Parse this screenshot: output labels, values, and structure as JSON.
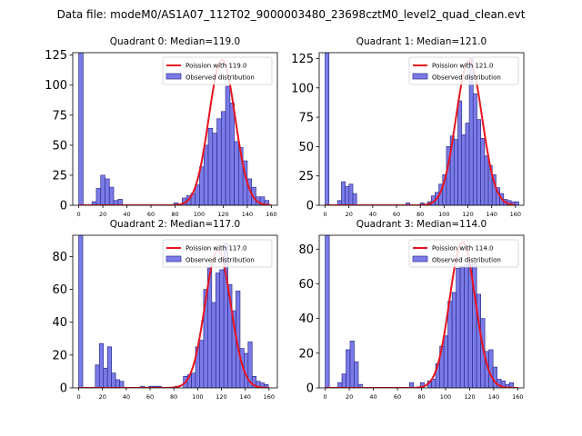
{
  "figure": {
    "suptitle": "Data file: modeM0/AS1A07_112T02_9000003480_23698cztM0_level2_quad_clean.evt"
  },
  "colors": {
    "bar_fill": "#7b7be8",
    "bar_edge": "#2f2f8f",
    "curve": "#e8141e"
  },
  "chart_data": [
    {
      "type": "bar",
      "title": "Quadrant 0: Median=119.0",
      "legend": [
        "Poission with 119.0",
        "Observed distribution"
      ],
      "legend_position": "top-right",
      "xlim": [
        -5,
        165
      ],
      "ylim": [
        0,
        127
      ],
      "xticks": [
        0,
        20,
        40,
        60,
        80,
        100,
        120,
        140,
        160
      ],
      "yticks": [
        0,
        25,
        50,
        75,
        100,
        125
      ],
      "bin_width": 3.6,
      "bins": [
        [
          0,
          127
        ],
        [
          11,
          3
        ],
        [
          14.6,
          14
        ],
        [
          18.2,
          25
        ],
        [
          21.8,
          22
        ],
        [
          25.4,
          15
        ],
        [
          29,
          4
        ],
        [
          32.6,
          5
        ],
        [
          79,
          2
        ],
        [
          86,
          6
        ],
        [
          89.6,
          8
        ],
        [
          93.2,
          10
        ],
        [
          96.8,
          17
        ],
        [
          100.4,
          32
        ],
        [
          104,
          50
        ],
        [
          107.6,
          64
        ],
        [
          111.2,
          60
        ],
        [
          114.8,
          72
        ],
        [
          118.4,
          78
        ],
        [
          122,
          99
        ],
        [
          125.6,
          85
        ],
        [
          129.2,
          53
        ],
        [
          132.8,
          48
        ],
        [
          136.4,
          37
        ],
        [
          140,
          22
        ],
        [
          143.6,
          15
        ],
        [
          147.2,
          7
        ],
        [
          150.8,
          7
        ],
        [
          154.4,
          4
        ]
      ],
      "poisson_mean": 119.0,
      "poisson_peak": 121
    },
    {
      "type": "bar",
      "title": "Quadrant 1: Median=121.0",
      "legend": [
        "Poission with 121.0",
        "Observed distribution"
      ],
      "legend_position": "top-right",
      "xlim": [
        -5,
        167
      ],
      "ylim": [
        0,
        130
      ],
      "xticks": [
        0,
        20,
        40,
        60,
        80,
        100,
        120,
        140,
        160
      ],
      "yticks": [
        0,
        25,
        50,
        75,
        100,
        125
      ],
      "bin_width": 3.2,
      "bins": [
        [
          0,
          130
        ],
        [
          10.5,
          4
        ],
        [
          13.7,
          20
        ],
        [
          16.9,
          16
        ],
        [
          20.1,
          18
        ],
        [
          23.3,
          10
        ],
        [
          68,
          2
        ],
        [
          80,
          2
        ],
        [
          86,
          3
        ],
        [
          89.2,
          8
        ],
        [
          92.4,
          11
        ],
        [
          95.6,
          18
        ],
        [
          98.8,
          26
        ],
        [
          102,
          50
        ],
        [
          105.2,
          59
        ],
        [
          108.4,
          56
        ],
        [
          111.6,
          89
        ],
        [
          114.8,
          60
        ],
        [
          118,
          70
        ],
        [
          121.2,
          125
        ],
        [
          124.4,
          95
        ],
        [
          127.6,
          73
        ],
        [
          130.8,
          57
        ],
        [
          134,
          42
        ],
        [
          137.2,
          34
        ],
        [
          140.4,
          26
        ],
        [
          143.6,
          15
        ],
        [
          146.8,
          10
        ],
        [
          150,
          5
        ],
        [
          153.2,
          4
        ],
        [
          156.4,
          3
        ],
        [
          159.6,
          3
        ]
      ],
      "poisson_mean": 121.0,
      "poisson_peak": 123
    },
    {
      "type": "bar",
      "title": "Quadrant 2: Median=117.0",
      "legend": [
        "Poission with 117.0",
        "Observed distribution"
      ],
      "legend_position": "top-right",
      "xlim": [
        -5,
        167
      ],
      "ylim": [
        0,
        93
      ],
      "xticks": [
        0,
        20,
        40,
        60,
        80,
        100,
        120,
        140,
        160
      ],
      "yticks": [
        0,
        20,
        40,
        60,
        80
      ],
      "bin_width": 3.4,
      "bins": [
        [
          0,
          93
        ],
        [
          14,
          14
        ],
        [
          17.4,
          27
        ],
        [
          20.8,
          12
        ],
        [
          24.2,
          25
        ],
        [
          27.6,
          9
        ],
        [
          31,
          5
        ],
        [
          34.4,
          4
        ],
        [
          52,
          1
        ],
        [
          59,
          1
        ],
        [
          63,
          1
        ],
        [
          66,
          1
        ],
        [
          81,
          1
        ],
        [
          88,
          7
        ],
        [
          91.4,
          8
        ],
        [
          94.8,
          9
        ],
        [
          98.2,
          25
        ],
        [
          101.6,
          29
        ],
        [
          105,
          60
        ],
        [
          108.4,
          73
        ],
        [
          111.8,
          52
        ],
        [
          115.2,
          70
        ],
        [
          118.6,
          72
        ],
        [
          122,
          88
        ],
        [
          125.4,
          63
        ],
        [
          128.8,
          47
        ],
        [
          132.2,
          59
        ],
        [
          135.6,
          24
        ],
        [
          139,
          21
        ],
        [
          142.4,
          28
        ],
        [
          145.8,
          7
        ],
        [
          149.2,
          4
        ],
        [
          152.6,
          3
        ],
        [
          156,
          2
        ]
      ],
      "poisson_mean": 117.0,
      "poisson_peak": 84
    },
    {
      "type": "bar",
      "title": "Quadrant 3: Median=114.0",
      "legend": [
        "Poission with 114.0",
        "Observed distribution"
      ],
      "legend_position": "top-right",
      "xlim": [
        -5,
        165
      ],
      "ylim": [
        0,
        88
      ],
      "xticks": [
        0,
        20,
        40,
        60,
        80,
        100,
        120,
        140,
        160
      ],
      "yticks": [
        0,
        20,
        40,
        60,
        80
      ],
      "bin_width": 3.4,
      "bins": [
        [
          0,
          88
        ],
        [
          10.5,
          3
        ],
        [
          13.9,
          8
        ],
        [
          17.3,
          22
        ],
        [
          20.7,
          27
        ],
        [
          24.1,
          15
        ],
        [
          27.5,
          2
        ],
        [
          70,
          3
        ],
        [
          79,
          3
        ],
        [
          85,
          4
        ],
        [
          88.4,
          5
        ],
        [
          91.8,
          14
        ],
        [
          95.2,
          24
        ],
        [
          98.6,
          30
        ],
        [
          102,
          50
        ],
        [
          105.4,
          55
        ],
        [
          108.8,
          69
        ],
        [
          112.2,
          70
        ],
        [
          115.6,
          71
        ],
        [
          119,
          71
        ],
        [
          122.4,
          72
        ],
        [
          125.8,
          54
        ],
        [
          129.2,
          40
        ],
        [
          132.6,
          21
        ],
        [
          136,
          22
        ],
        [
          139.4,
          12
        ],
        [
          142.8,
          5
        ],
        [
          146.2,
          4
        ],
        [
          149.6,
          2
        ],
        [
          153,
          3
        ]
      ],
      "poisson_mean": 114.0,
      "poisson_peak": 84
    }
  ]
}
